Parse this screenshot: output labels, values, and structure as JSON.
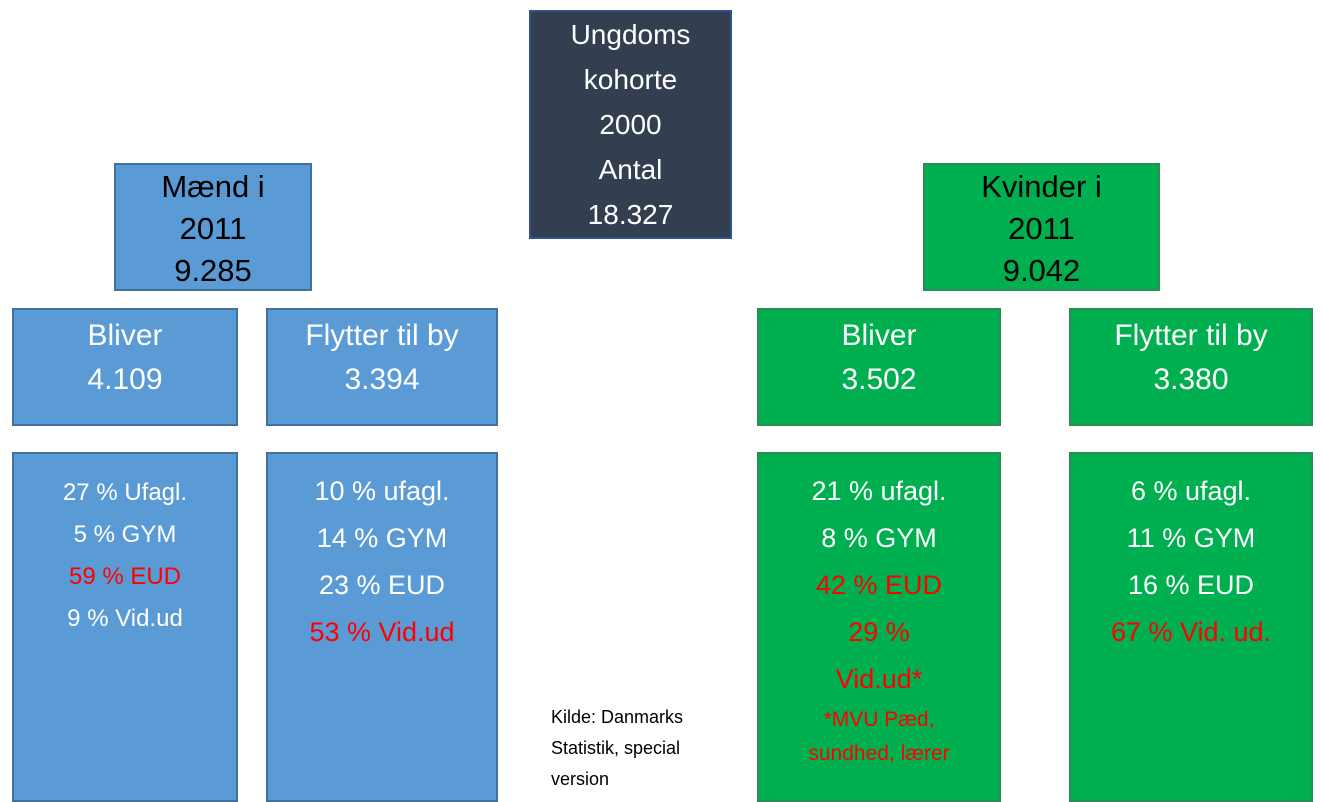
{
  "nodes": [
    {
      "id": "n-root",
      "cls": "",
      "lines": [
        {
          "text": "Ungdoms"
        },
        {
          "text": "kohorte"
        },
        {
          "text": "2000"
        },
        {
          "text": "Antal"
        },
        {
          "text": "18.327"
        }
      ]
    },
    {
      "id": "n-men",
      "cls": "",
      "lines": [
        {
          "text": "Mænd i"
        },
        {
          "text": "2011"
        },
        {
          "text": "9.285"
        }
      ]
    },
    {
      "id": "n-women",
      "cls": "",
      "lines": [
        {
          "text": "Kvinder i"
        },
        {
          "text": "2011"
        },
        {
          "text": "9.042"
        }
      ]
    },
    {
      "id": "n-men-stay",
      "cls": "mid blue",
      "lines": [
        {
          "text": "Bliver"
        },
        {
          "text": "4.109"
        }
      ]
    },
    {
      "id": "n-men-move",
      "cls": "mid blue",
      "lines": [
        {
          "text": "Flytter til by"
        },
        {
          "text": "3.394"
        }
      ]
    },
    {
      "id": "n-women-stay",
      "cls": "mid green",
      "lines": [
        {
          "text": "Bliver"
        },
        {
          "text": "3.502"
        }
      ]
    },
    {
      "id": "n-women-move",
      "cls": "mid green",
      "lines": [
        {
          "text": "Flytter til by"
        },
        {
          "text": "3.380"
        }
      ]
    },
    {
      "id": "d-men-stay",
      "cls": "det blue",
      "lines": [
        {
          "text": "27 % Ufagl."
        },
        {
          "text": "5 % GYM"
        },
        {
          "text": "59 % EUD",
          "color": "#ff0000"
        },
        {
          "text": "9 % Vid.ud"
        }
      ]
    },
    {
      "id": "d-men-move",
      "cls": "det blue",
      "lines": [
        {
          "text": "10 % ufagl."
        },
        {
          "text": "14 % GYM"
        },
        {
          "text": "23 % EUD"
        },
        {
          "text": "53 % Vid.ud",
          "color": "#ff0000"
        }
      ]
    },
    {
      "id": "d-women-stay",
      "cls": "det green",
      "lines": [
        {
          "text": "21 % ufagl."
        },
        {
          "text": "8 % GYM"
        },
        {
          "text": "42 % EUD",
          "color": "#ff0000"
        },
        {
          "text": "29 %",
          "color": "#ff0000"
        },
        {
          "text": "Vid.ud*",
          "color": "#ff0000"
        },
        {
          "text": "*MVU Pæd,",
          "color": "#ff0000"
        },
        {
          "text": "sundhed, lærer",
          "color": "#ff0000"
        }
      ]
    },
    {
      "id": "d-women-move",
      "cls": "det green",
      "lines": [
        {
          "text": "6 % ufagl."
        },
        {
          "text": "11 % GYM"
        },
        {
          "text": "16 % EUD"
        },
        {
          "text": "67 % Vid. ud.",
          "color": "#ff0000"
        }
      ]
    }
  ],
  "source": [
    "Kilde: Danmarks",
    "Statistik, special",
    "version"
  ]
}
